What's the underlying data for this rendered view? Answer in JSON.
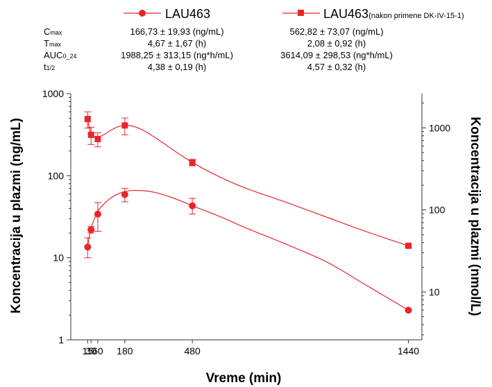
{
  "chart_data": {
    "type": "line",
    "x_axis": {
      "label": "Vreme (min)",
      "ticks": [
        15,
        30,
        60,
        180,
        480,
        1440
      ],
      "tick_labels": [
        "15",
        "30",
        "60",
        "180",
        "480",
        "1440"
      ],
      "range": [
        -60,
        1500
      ]
    },
    "y_axis_left": {
      "label": "Koncentracija u plazmi (ng/mL)",
      "scale": "log",
      "range": [
        1,
        1000
      ],
      "tick_labels": [
        "1",
        "10",
        "100",
        "1000"
      ]
    },
    "y_axis_right": {
      "label": "Koncentracija u plazmi (nmol/L)",
      "scale": "log",
      "range": [
        2.61,
        2610
      ],
      "tick_labels": [
        "10",
        "100",
        "1000"
      ]
    },
    "legend": {
      "position": "top",
      "entries": [
        {
          "name": "LAU463",
          "suffix": "",
          "marker": "circle"
        },
        {
          "name": "LAU463",
          "suffix": "(nakon primene DK-IV-15-1)",
          "marker": "square"
        }
      ]
    },
    "parameters": [
      {
        "name_main": "C",
        "name_sub": "max",
        "values": [
          "166,73 ± 19,93 (ng/mL)",
          "562,82 ± 73,07 (ng/mL)"
        ]
      },
      {
        "name_main": "T",
        "name_sub": "max",
        "values": [
          "4,67 ± 1,67 (h)",
          "2,08 ± 0,92 (h)"
        ]
      },
      {
        "name_main": "AUC",
        "name_sub": "0_24",
        "values": [
          "1988,25 ± 313,15 (ng*h/mL)",
          "3614,09 ± 298,53 (ng*h/mL)"
        ]
      },
      {
        "name_main": "t",
        "name_sub": "1/2",
        "values": [
          "4,38 ± 0,19 (h)",
          "4,57 ± 0,32 (h)"
        ]
      }
    ],
    "series": [
      {
        "name": "LAU463",
        "marker": "circle",
        "color": "#e8262a",
        "points": [
          {
            "x": 15,
            "y": 13.5,
            "err_low": 10,
            "err_high": 17.5
          },
          {
            "x": 30,
            "y": 22,
            "err_low": 20,
            "err_high": 24
          },
          {
            "x": 60,
            "y": 34,
            "err_low": 21,
            "err_high": 47
          },
          {
            "x": 180,
            "y": 59,
            "err_low": 48,
            "err_high": 70
          },
          {
            "x": 480,
            "y": 43,
            "err_low": 34,
            "err_high": 53
          },
          {
            "x": 1440,
            "y": 2.3,
            "err_low": 2.25,
            "err_high": 2.35
          }
        ],
        "fit_curve": [
          [
            15,
            13.5
          ],
          [
            22,
            18
          ],
          [
            30,
            23
          ],
          [
            45,
            30
          ],
          [
            60,
            37
          ],
          [
            90,
            46
          ],
          [
            120,
            54
          ],
          [
            150,
            60
          ],
          [
            180,
            64
          ],
          [
            210,
            66
          ],
          [
            240,
            66
          ],
          [
            280,
            65
          ],
          [
            330,
            61
          ],
          [
            400,
            53
          ],
          [
            480,
            43
          ],
          [
            600,
            32
          ],
          [
            720,
            23
          ],
          [
            900,
            14.5
          ],
          [
            1080,
            8.8
          ],
          [
            1260,
            4.5
          ],
          [
            1440,
            2.3
          ]
        ]
      },
      {
        "name": "LAU463 (nakon primene DK-IV-15-1)",
        "marker": "square",
        "color": "#e8262a",
        "points": [
          {
            "x": 15,
            "y": 490,
            "err_low": 380,
            "err_high": 600
          },
          {
            "x": 30,
            "y": 315,
            "err_low": 240,
            "err_high": 390
          },
          {
            "x": 60,
            "y": 280,
            "err_low": 225,
            "err_high": 335
          },
          {
            "x": 180,
            "y": 410,
            "err_low": 315,
            "err_high": 505
          },
          {
            "x": 480,
            "y": 145,
            "err_low": 132,
            "err_high": 158
          },
          {
            "x": 1440,
            "y": 14,
            "err_low": 13.6,
            "err_high": 14.4
          }
        ],
        "fit_curve": [
          [
            15,
            490
          ],
          [
            22,
            390
          ],
          [
            30,
            330
          ],
          [
            45,
            295
          ],
          [
            60,
            295
          ],
          [
            90,
            320
          ],
          [
            120,
            360
          ],
          [
            150,
            395
          ],
          [
            180,
            410
          ],
          [
            210,
            405
          ],
          [
            250,
            370
          ],
          [
            300,
            310
          ],
          [
            360,
            240
          ],
          [
            420,
            185
          ],
          [
            480,
            145
          ],
          [
            600,
            97
          ],
          [
            720,
            70
          ],
          [
            900,
            47
          ],
          [
            1080,
            31
          ],
          [
            1260,
            20.5
          ],
          [
            1440,
            14
          ]
        ]
      }
    ]
  }
}
